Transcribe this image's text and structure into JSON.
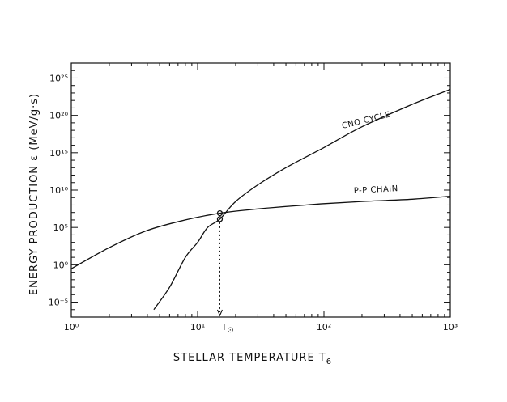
{
  "chart_data": {
    "type": "line",
    "title": "",
    "xlabel": "STELLAR TEMPERATURE T",
    "xlabel_sub": "6",
    "ylabel": "ENERGY PRODUCTION ε (MeV/g·s)",
    "x_scale": "log",
    "y_scale": "log",
    "xlim": [
      1,
      1000
    ],
    "ylim": [
      1e-07,
      1e+27
    ],
    "x_ticks": [
      {
        "value": 1,
        "label": "10⁰"
      },
      {
        "value": 10,
        "label": "10¹"
      },
      {
        "value": 100,
        "label": "10²"
      },
      {
        "value": 1000,
        "label": "10³"
      }
    ],
    "y_ticks": [
      {
        "value": 1e-05,
        "label": "10⁻⁵"
      },
      {
        "value": 1,
        "label": "10⁰"
      },
      {
        "value": 100000.0,
        "label": "10⁵"
      },
      {
        "value": 10000000000.0,
        "label": "10¹⁰"
      },
      {
        "value": 1000000000000000.0,
        "label": "10¹⁵"
      },
      {
        "value": 1e+20,
        "label": "10²⁰"
      },
      {
        "value": 1e+25,
        "label": "10²⁵"
      }
    ],
    "grid": false,
    "legend": "none",
    "series": [
      {
        "name": "P-P CHAIN",
        "x": [
          1,
          2,
          4,
          8,
          15,
          30,
          60,
          100,
          200,
          500,
          1000
        ],
        "y": [
          0.3,
          200.0,
          40000.0,
          1000000.0,
          8000000.0,
          30000000.0,
          80000000.0,
          150000000.0,
          300000000.0,
          600000000.0,
          1500000000.0
        ]
      },
      {
        "name": "CNO CYCLE",
        "x": [
          4.5,
          6,
          8,
          10,
          12,
          15,
          20,
          30,
          50,
          100,
          200,
          500,
          1000
        ],
        "y": [
          1e-06,
          0.001,
          10.0,
          1000.0,
          100000.0,
          1300000.0,
          300000000.0,
          50000000000.0,
          10000000000000.0,
          5000000000000000.0,
          3e+18,
          3e+21,
          3e+23
        ]
      }
    ],
    "markers": [
      {
        "x": 15,
        "y": 8000000.0,
        "label": ""
      },
      {
        "x": 15,
        "y": 1300000.0,
        "label": ""
      }
    ],
    "annotations": [
      {
        "text": "T",
        "sub": "⊙",
        "x": 15,
        "description": "Sun's core temperature marker"
      }
    ]
  }
}
